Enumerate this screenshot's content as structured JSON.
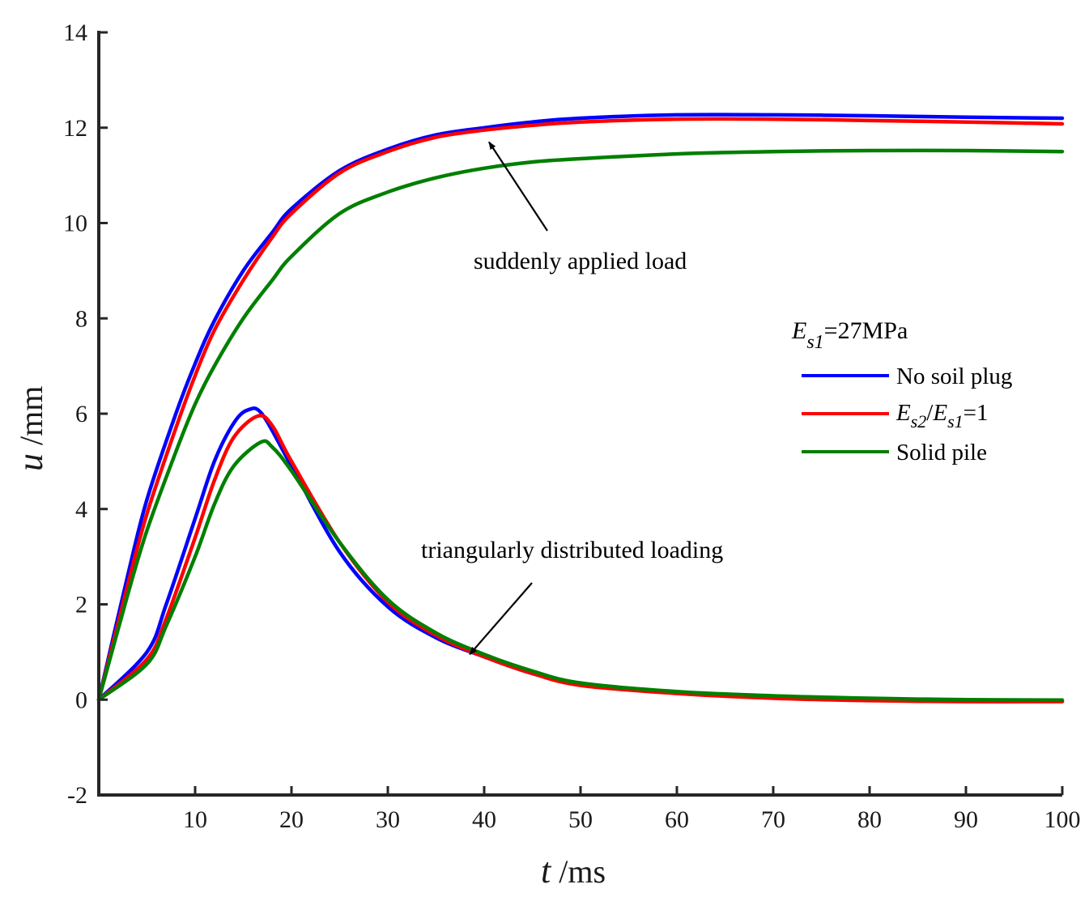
{
  "chart_data": {
    "type": "line",
    "xlabel": {
      "symbol": "t",
      "unit": " /ms"
    },
    "ylabel": {
      "symbol": "u",
      "unit": " /mm"
    },
    "xlim": [
      0,
      100
    ],
    "ylim": [
      -2,
      14
    ],
    "xticks": [
      10,
      20,
      30,
      40,
      50,
      60,
      70,
      80,
      90,
      100
    ],
    "yticks": [
      -2,
      0,
      2,
      4,
      6,
      8,
      10,
      12,
      14
    ],
    "grid": false,
    "legend": {
      "position": "right",
      "title": {
        "base": "E",
        "sub": "s1",
        "rest": "=27MPa"
      },
      "entries": [
        {
          "key": "no_plug",
          "label": "No soil plug",
          "color": "#0000ff"
        },
        {
          "key": "ratio",
          "label": "",
          "label_parts": {
            "e1": "E",
            "s1": "s2",
            "slash": "/",
            "e2": "E",
            "s2": "s1",
            "rest": "=1"
          },
          "color": "#ff0000"
        },
        {
          "key": "solid",
          "label": "Solid pile",
          "color": "#007f00"
        }
      ]
    },
    "annotations": [
      {
        "text": "suddenly applied load",
        "points_to": [
          40.5,
          11.7
        ]
      },
      {
        "text": "triangularly distributed loading",
        "points_to": [
          38.5,
          0.95
        ]
      }
    ],
    "series": [
      {
        "name": "No soil plug",
        "group": "suddenly applied load",
        "color": "#0000ff",
        "x": [
          0,
          3,
          5,
          8,
          10,
          12,
          15,
          18,
          20,
          25,
          30,
          35,
          40,
          45,
          50,
          60,
          70,
          80,
          90,
          100
        ],
        "y": [
          0,
          2.6,
          4.2,
          6.0,
          7.05,
          7.95,
          9.0,
          9.8,
          10.3,
          11.1,
          11.55,
          11.85,
          12.0,
          12.12,
          12.2,
          12.27,
          12.27,
          12.25,
          12.22,
          12.2
        ]
      },
      {
        "name": "E_s2/E_s1=1",
        "group": "suddenly applied load",
        "color": "#ff0000",
        "x": [
          0,
          3,
          5,
          8,
          10,
          12,
          15,
          18,
          20,
          25,
          30,
          35,
          40,
          45,
          50,
          60,
          70,
          80,
          90,
          100
        ],
        "y": [
          0,
          2.4,
          3.9,
          5.7,
          6.8,
          7.75,
          8.8,
          9.7,
          10.2,
          11.05,
          11.5,
          11.8,
          11.95,
          12.05,
          12.12,
          12.18,
          12.18,
          12.15,
          12.12,
          12.08
        ]
      },
      {
        "name": "Solid pile",
        "group": "suddenly applied load",
        "color": "#007f00",
        "x": [
          0,
          3,
          5,
          8,
          10,
          12,
          15,
          18,
          20,
          25,
          30,
          35,
          40,
          45,
          50,
          60,
          70,
          80,
          90,
          100
        ],
        "y": [
          0,
          2.2,
          3.55,
          5.2,
          6.2,
          7.0,
          8.0,
          8.8,
          9.3,
          10.2,
          10.65,
          10.95,
          11.15,
          11.28,
          11.35,
          11.45,
          11.5,
          11.52,
          11.52,
          11.5
        ]
      },
      {
        "name": "No soil plug",
        "group": "triangularly distributed loading",
        "color": "#0000ff",
        "x": [
          0,
          5,
          7,
          10,
          12,
          14,
          15.5,
          17,
          20,
          25,
          30,
          35,
          40,
          45,
          50,
          60,
          70,
          80,
          90,
          100
        ],
        "y": [
          0,
          1.0,
          2.0,
          3.8,
          5.0,
          5.8,
          6.08,
          5.98,
          4.9,
          3.1,
          1.95,
          1.3,
          0.9,
          0.55,
          0.33,
          0.15,
          0.05,
          0.0,
          -0.02,
          -0.02
        ]
      },
      {
        "name": "E_s2/E_s1=1",
        "group": "triangularly distributed loading",
        "color": "#ff0000",
        "x": [
          0,
          5,
          7,
          10,
          12,
          14,
          16.5,
          18,
          20,
          25,
          30,
          35,
          40,
          45,
          50,
          60,
          70,
          80,
          90,
          100
        ],
        "y": [
          0,
          0.85,
          1.7,
          3.4,
          4.6,
          5.5,
          5.95,
          5.75,
          5.0,
          3.3,
          2.05,
          1.35,
          0.9,
          0.55,
          0.3,
          0.13,
          0.03,
          -0.02,
          -0.04,
          -0.04
        ]
      },
      {
        "name": "Solid pile",
        "group": "triangularly distributed loading",
        "color": "#007f00",
        "x": [
          0,
          5,
          7,
          10,
          12,
          14,
          16.8,
          18,
          20,
          25,
          30,
          35,
          40,
          45,
          50,
          60,
          70,
          80,
          90,
          100
        ],
        "y": [
          0,
          0.75,
          1.55,
          3.0,
          4.1,
          4.9,
          5.4,
          5.3,
          4.8,
          3.3,
          2.1,
          1.4,
          0.95,
          0.6,
          0.35,
          0.17,
          0.08,
          0.03,
          0.0,
          -0.01
        ]
      }
    ]
  }
}
